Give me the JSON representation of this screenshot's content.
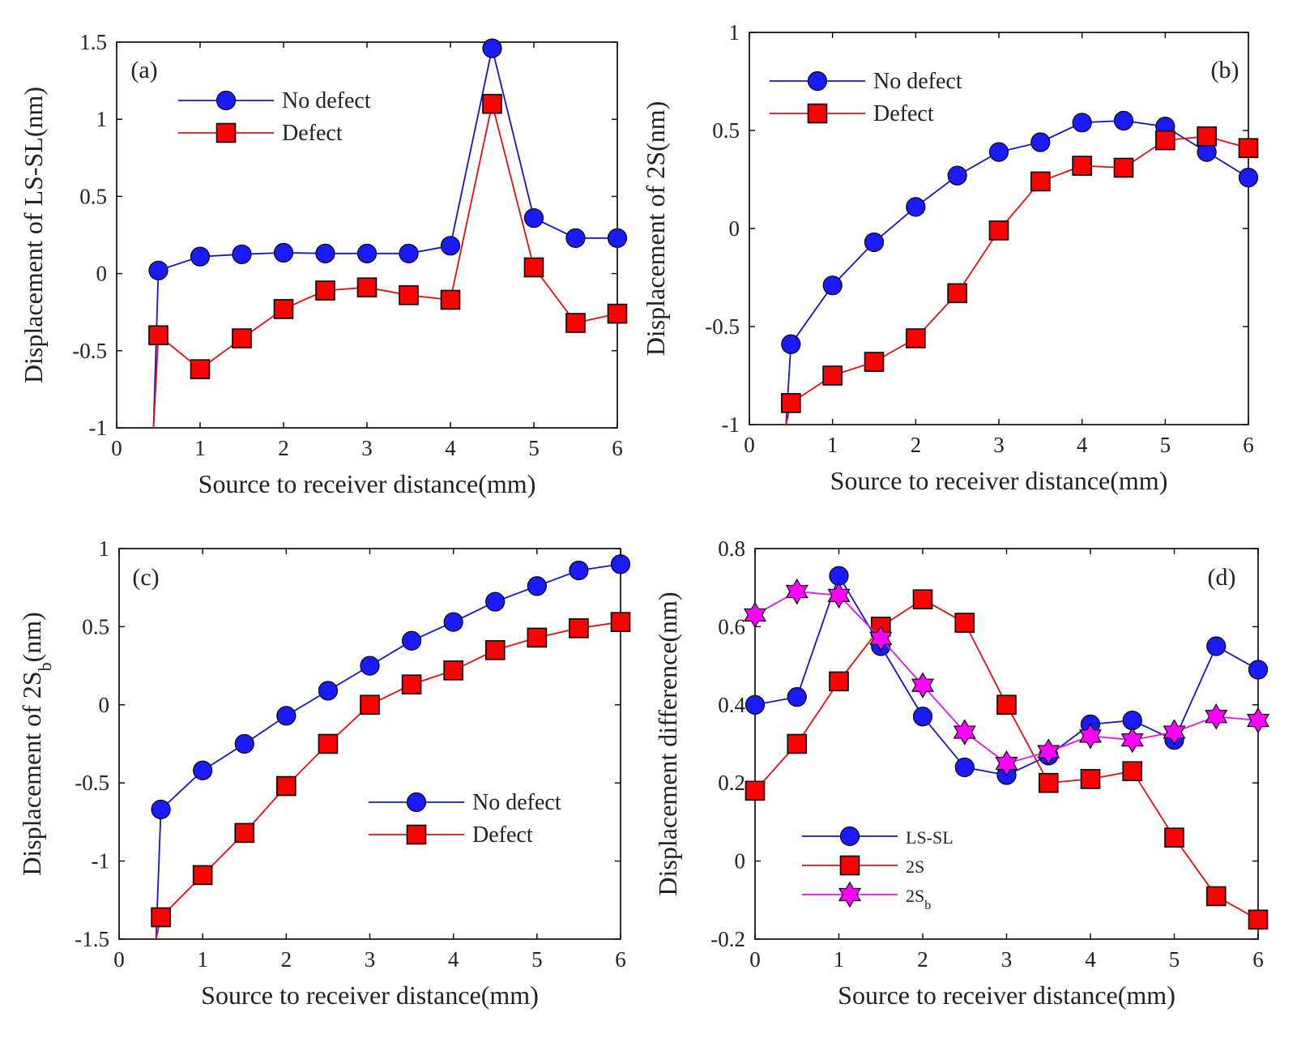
{
  "chart_data": [
    {
      "id": "a",
      "type": "line",
      "panel_label": "(a)",
      "xlabel": "Source to receiver distance(mm)",
      "ylabel": "Displacement of LS-SL(nm)",
      "xlim": [
        0,
        6
      ],
      "ylim": [
        -1,
        1.5
      ],
      "xticks": [
        "0",
        "1",
        "2",
        "3",
        "4",
        "5",
        "6"
      ],
      "yticks": [
        "-1",
        "-0.5",
        "0",
        "0.5",
        "1",
        "1.5"
      ],
      "legend_position": "top-left",
      "x": [
        0.5,
        1,
        1.5,
        2,
        2.5,
        3,
        3.5,
        4,
        4.5,
        5,
        5.5,
        6
      ],
      "series": [
        {
          "name": "No defect",
          "marker": "circle",
          "color": "#1414c8",
          "fill": "#1a1aff",
          "lead_from_bottom": true,
          "values": [
            0.02,
            0.11,
            0.125,
            0.135,
            0.13,
            0.13,
            0.13,
            0.18,
            1.46,
            0.36,
            0.23,
            0.23
          ]
        },
        {
          "name": "Defect",
          "marker": "square",
          "color": "#e01010",
          "fill": "#ff0000",
          "lead_from_bottom": true,
          "values": [
            -0.4,
            -0.62,
            -0.42,
            -0.23,
            -0.11,
            -0.09,
            -0.14,
            -0.17,
            1.1,
            0.04,
            -0.32,
            -0.26
          ]
        }
      ]
    },
    {
      "id": "b",
      "type": "line",
      "panel_label": "(b)",
      "xlabel": "Source to receiver distance(mm)",
      "ylabel": "Displacement of 2S(nm)",
      "xlim": [
        0,
        6
      ],
      "ylim": [
        -1,
        1
      ],
      "xticks": [
        "0",
        "1",
        "2",
        "3",
        "4",
        "5",
        "6"
      ],
      "yticks": [
        "-1",
        "-0.5",
        "0",
        "0.5",
        "1"
      ],
      "legend_position": "top-left",
      "x": [
        0.5,
        1,
        1.5,
        2,
        2.5,
        3,
        3.5,
        4,
        4.5,
        5,
        5.5,
        6
      ],
      "series": [
        {
          "name": "No defect",
          "marker": "circle",
          "color": "#1414c8",
          "fill": "#1a1aff",
          "lead_from_bottom": true,
          "values": [
            -0.59,
            -0.29,
            -0.07,
            0.11,
            0.27,
            0.39,
            0.44,
            0.54,
            0.55,
            0.52,
            0.39,
            0.26
          ]
        },
        {
          "name": "Defect",
          "marker": "square",
          "color": "#e01010",
          "fill": "#ff0000",
          "lead_from_bottom": true,
          "values": [
            -0.89,
            -0.75,
            -0.68,
            -0.56,
            -0.33,
            -0.01,
            0.24,
            0.32,
            0.31,
            0.45,
            0.47,
            0.41
          ]
        }
      ]
    },
    {
      "id": "c",
      "type": "line",
      "panel_label": "(c)",
      "xlabel": "Source to receiver distance(mm)",
      "ylabel": "Displacement of 2S",
      "ylabel_sub": "b",
      "ylabel_suffix": "(nm)",
      "xlim": [
        0,
        6
      ],
      "ylim": [
        -1.5,
        1
      ],
      "xticks": [
        "0",
        "1",
        "2",
        "3",
        "4",
        "5",
        "6"
      ],
      "yticks": [
        "-1.5",
        "-1",
        "-0.5",
        "0",
        "0.5",
        "1"
      ],
      "legend_position": "lower-right",
      "x": [
        0.5,
        1,
        1.5,
        2,
        2.5,
        3,
        3.5,
        4,
        4.5,
        5,
        5.5,
        6
      ],
      "series": [
        {
          "name": "No defect",
          "marker": "circle",
          "color": "#1414c8",
          "fill": "#1a1aff",
          "lead_from_bottom": true,
          "values": [
            -0.67,
            -0.42,
            -0.25,
            -0.07,
            0.09,
            0.25,
            0.41,
            0.53,
            0.66,
            0.76,
            0.86,
            0.9
          ]
        },
        {
          "name": "Defect",
          "marker": "square",
          "color": "#e01010",
          "fill": "#ff0000",
          "lead_from_bottom": true,
          "values": [
            -1.36,
            -1.09,
            -0.82,
            -0.52,
            -0.25,
            0.0,
            0.13,
            0.22,
            0.35,
            0.43,
            0.49,
            0.53
          ]
        }
      ]
    },
    {
      "id": "d",
      "type": "line",
      "panel_label": "(d)",
      "xlabel": "Source to receiver distance(mm)",
      "ylabel": "Displacement difference(nm)",
      "xlim": [
        0,
        6
      ],
      "ylim": [
        -0.2,
        0.8
      ],
      "xticks": [
        "0",
        "1",
        "2",
        "3",
        "4",
        "5",
        "6"
      ],
      "yticks": [
        "-0.2",
        "0",
        "0.2",
        "0.4",
        "0.6",
        "0.8"
      ],
      "legend_position": "lower-left",
      "x": [
        0,
        0.5,
        1,
        1.5,
        2,
        2.5,
        3,
        3.5,
        4,
        4.5,
        5,
        5.5,
        6
      ],
      "series": [
        {
          "name": "LS-SL",
          "marker": "circle",
          "color": "#1414c8",
          "fill": "#1a1aff",
          "values": [
            0.4,
            0.42,
            0.73,
            0.55,
            0.37,
            0.24,
            0.22,
            0.27,
            0.35,
            0.36,
            0.31,
            0.55,
            0.49
          ]
        },
        {
          "name": "2S",
          "marker": "square",
          "color": "#e01010",
          "fill": "#ff0000",
          "values": [
            0.18,
            0.3,
            0.46,
            0.6,
            0.67,
            0.61,
            0.4,
            0.2,
            0.21,
            0.23,
            0.06,
            -0.09,
            -0.15
          ]
        },
        {
          "name": "2S",
          "name_sub": "b",
          "marker": "star",
          "color": "#e614e6",
          "fill": "#ff00ff",
          "values": [
            0.63,
            0.69,
            0.68,
            0.57,
            0.45,
            0.33,
            0.25,
            0.28,
            0.32,
            0.31,
            0.33,
            0.37,
            0.36
          ]
        }
      ]
    }
  ]
}
